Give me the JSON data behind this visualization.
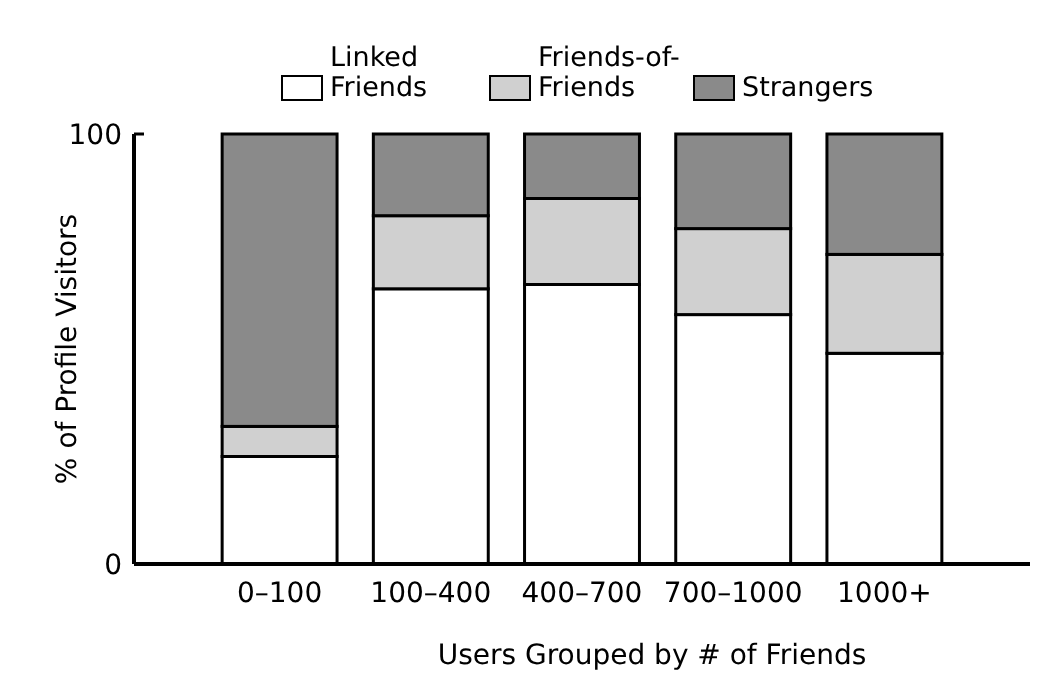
{
  "chart_data": {
    "type": "bar",
    "stacked": true,
    "xlabel": "Users Grouped by # of Friends",
    "ylabel": "% of Profile Visitors",
    "categories": [
      "0–100",
      "100–400",
      "400–700",
      "700–1000",
      "1000+"
    ],
    "series": [
      {
        "name": "Linked Friends",
        "color": "#ffffff",
        "values": [
          25,
          64,
          65,
          58,
          49
        ]
      },
      {
        "name": "Friends-of-Friends",
        "color": "#d0d0d0",
        "values": [
          7,
          17,
          20,
          20,
          23
        ]
      },
      {
        "name": "Strangers",
        "color": "#8a8a8a",
        "values": [
          68,
          19,
          15,
          22,
          28
        ]
      }
    ],
    "ylim": [
      0,
      100
    ],
    "yticks": [
      0,
      100
    ],
    "legend": "top"
  }
}
